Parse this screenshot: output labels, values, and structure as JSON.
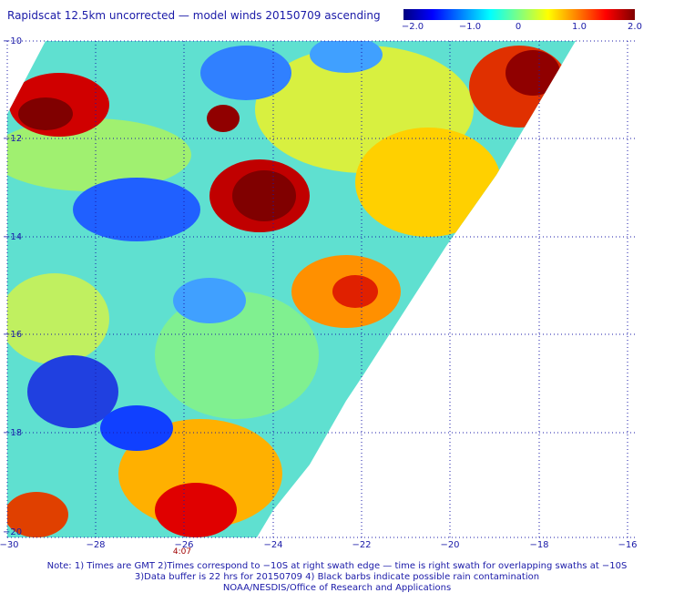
{
  "title": "Rapidscat 12.5km uncorrected — model winds 20150709 ascending",
  "colorbar": {
    "labels": [
      "−2.0",
      "−1.0",
      "0",
      "1.0",
      "2.0"
    ],
    "range": [
      -2.0,
      2.0
    ],
    "colors": [
      "#00007f",
      "#0000ff",
      "#0080ff",
      "#00ffff",
      "#80ff80",
      "#ffff00",
      "#ff8000",
      "#ff0000",
      "#7f0000"
    ]
  },
  "axes": {
    "y_labels": [
      "−10",
      "−12",
      "−14",
      "−16",
      "−18",
      "−20"
    ],
    "x_labels": [
      "−30",
      "−28",
      "−26",
      "−24",
      "−22",
      "−20",
      "−18",
      "−16"
    ],
    "lat_range": [
      -20,
      -10
    ],
    "lon_range": [
      -30,
      -16
    ]
  },
  "time_label": "4:07",
  "notes": [
    "Note: 1) Times are GMT 2)Times correspond to −10S at right swath edge — time is right swath for overlapping swaths at −10S",
    "3)Data buffer is 22 hrs for 20150709 4) Black barbs indicate possible rain contamination",
    "NOAA/NESDIS/Office of Research and Applications"
  ]
}
